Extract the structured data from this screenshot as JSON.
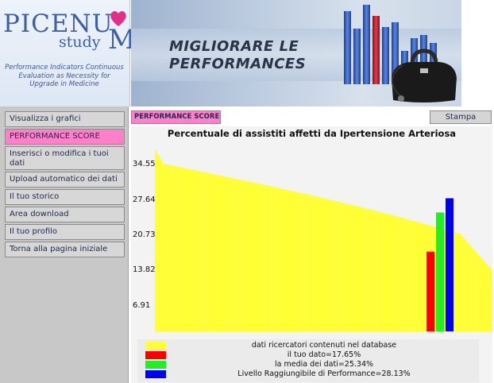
{
  "header": {
    "logo_word": "PICENU",
    "logo_study": "study",
    "logo_m": "M",
    "tagline": [
      "Performance Indicators Continuous",
      "Evaluation as Necessity for",
      "Upgrade in Medicine"
    ],
    "banner_title_line1": "MIGLIORARE LE",
    "banner_title_line2": "PERFORMANCES",
    "banner_graphic_icon": "bar-chart-and-doctor-bag-icon"
  },
  "sidebar": {
    "items": [
      {
        "label": "Visualizza i grafici",
        "active": false
      },
      {
        "label": "PERFORMANCE SCORE",
        "active": true
      },
      {
        "label": "Inserisci o modifica i tuoi dati",
        "active": false
      },
      {
        "label": "Upload automatico dei dati",
        "active": false
      },
      {
        "label": "Il tuo storico",
        "active": false
      },
      {
        "label": "Area download",
        "active": false
      },
      {
        "label": "Il tuo profilo",
        "active": false
      },
      {
        "label": "Torna alla pagina iniziale",
        "active": false
      }
    ]
  },
  "main": {
    "tab_label": "PERFORMANCE SCORE",
    "print_label": "Stampa"
  },
  "colors": {
    "accent_pink": "#ff7fc8",
    "bars_yellow": "#ffff33",
    "mine_red": "#ff0000",
    "mean_green": "#22ee22",
    "target_blue": "#0000ee"
  },
  "chart_data": {
    "type": "bar",
    "title": "Percentuale di assistiti affetti da Ipertensione Arteriosa",
    "yticks": [
      "34.55",
      "27.64",
      "20.73",
      "13.82",
      "6.91"
    ],
    "ytick_values": [
      34.55,
      27.64,
      20.73,
      13.82,
      6.91
    ],
    "ylim": [
      2.0,
      38.5
    ],
    "highlight_bars": [
      {
        "name": "il tuo dato",
        "value": 17.65,
        "color": "#ff0000"
      },
      {
        "name": "la media dei dati",
        "value": 25.34,
        "color": "#22ee22"
      },
      {
        "name": "Livello Raggiungibile di Performance",
        "value": 28.13,
        "color": "#0000ee"
      }
    ],
    "legend": [
      {
        "label": "dati ricercatori contenuti nel database",
        "color": "#ffff33"
      },
      {
        "label": "il tuo dato=17.65%",
        "color": "#ff0000"
      },
      {
        "label": "la media dei dati=25.34%",
        "color": "#22ee22"
      },
      {
        "label": "Livello Raggiungibile di Performance=28.13%",
        "color": "#0000ee"
      }
    ]
  }
}
